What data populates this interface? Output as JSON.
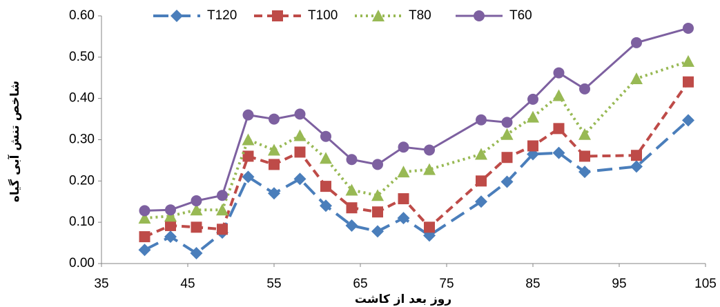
{
  "chart_data": {
    "type": "line",
    "x_label": "روز بعد از کاشت",
    "y_label": "شاخص تنش آبی گیاه",
    "x": [
      40,
      43,
      46,
      49,
      52,
      55,
      58,
      61,
      64,
      67,
      70,
      73,
      79,
      82,
      85,
      88,
      91,
      97,
      103
    ],
    "series": [
      {
        "name": "T120",
        "color": "#4a7ebb",
        "marker": "diamond",
        "dash": "long",
        "values": [
          0.033,
          0.065,
          0.025,
          0.075,
          0.21,
          0.17,
          0.205,
          0.14,
          0.092,
          0.078,
          0.11,
          0.068,
          0.15,
          0.198,
          0.265,
          0.268,
          0.222,
          0.235,
          0.347
        ]
      },
      {
        "name": "T100",
        "color": "#be4b48",
        "marker": "square",
        "dash": "dash",
        "values": [
          0.065,
          0.092,
          0.088,
          0.083,
          0.26,
          0.24,
          0.27,
          0.187,
          0.135,
          0.125,
          0.157,
          0.088,
          0.2,
          0.257,
          0.285,
          0.327,
          0.26,
          0.262,
          0.44
        ]
      },
      {
        "name": "T80",
        "color": "#98b954",
        "marker": "triangle",
        "dash": "dot",
        "values": [
          0.11,
          0.115,
          0.13,
          0.13,
          0.3,
          0.275,
          0.31,
          0.255,
          0.178,
          0.165,
          0.222,
          0.228,
          0.265,
          0.313,
          0.355,
          0.407,
          0.313,
          0.448,
          0.49
        ]
      },
      {
        "name": "T60",
        "color": "#7d60a0",
        "marker": "circle",
        "dash": "solid",
        "values": [
          0.128,
          0.13,
          0.152,
          0.165,
          0.36,
          0.35,
          0.362,
          0.308,
          0.252,
          0.24,
          0.282,
          0.275,
          0.348,
          0.342,
          0.398,
          0.462,
          0.423,
          0.535,
          0.57
        ]
      }
    ],
    "xlim": [
      35,
      105
    ],
    "xticks": [
      35,
      45,
      55,
      65,
      75,
      85,
      95,
      105
    ],
    "ylim": [
      0,
      0.6
    ],
    "yticks": [
      {
        "value": 0,
        "label": "0.00"
      },
      {
        "value": 0.1,
        "label": "0.10"
      },
      {
        "value": 0.2,
        "label": "0.20"
      },
      {
        "value": 0.3,
        "label": "0.30"
      },
      {
        "value": 0.4,
        "label": "0.40"
      },
      {
        "value": 0.5,
        "label": "0.50"
      },
      {
        "value": 0.6,
        "label": "0.60"
      }
    ],
    "grid": false,
    "legend": "top"
  }
}
